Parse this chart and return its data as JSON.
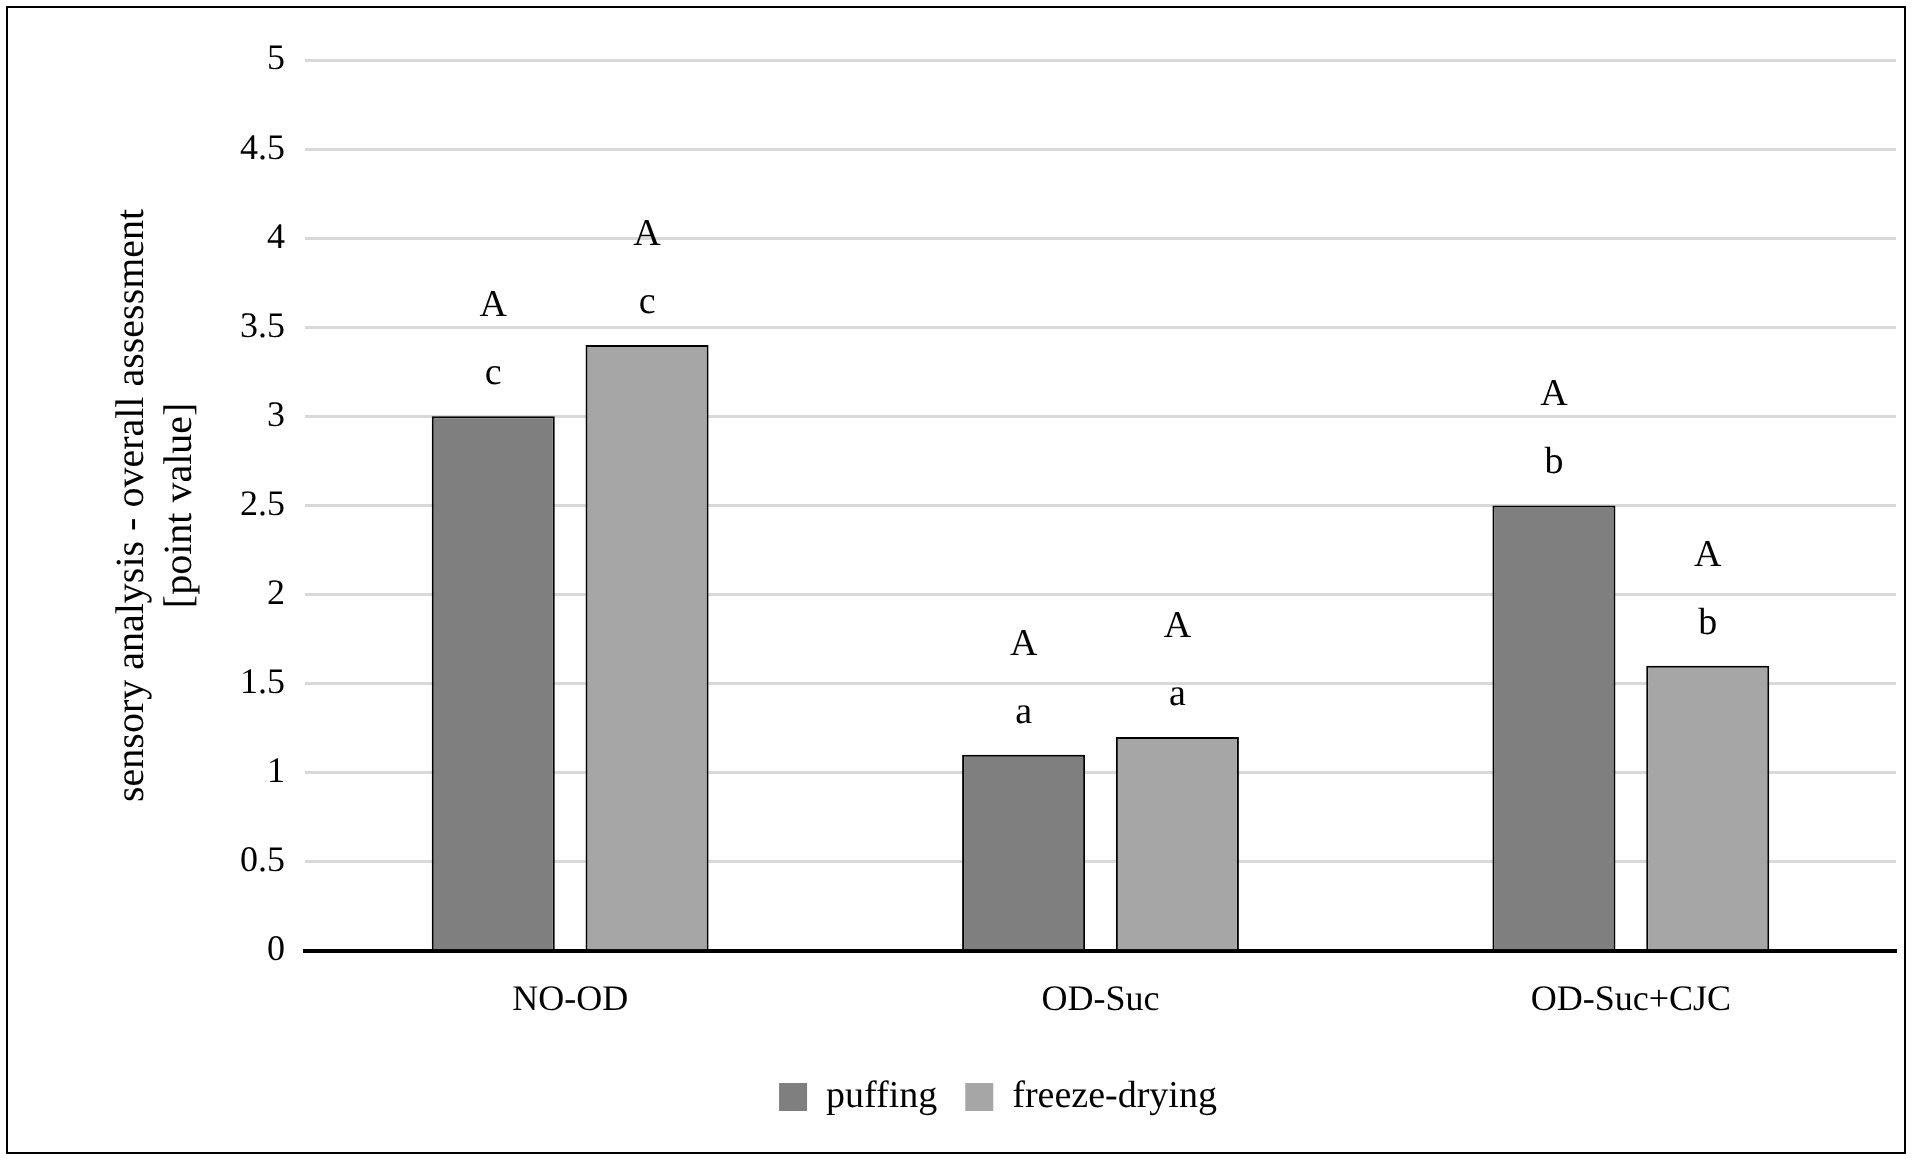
{
  "chart_data": {
    "type": "bar",
    "ylabel": "sensory analysis - overall assessment\n[point value]",
    "categories": [
      "NO-OD",
      "OD-Suc",
      "OD-Suc+CJC"
    ],
    "series": [
      {
        "name": "puffing",
        "color": "#7f7f7f",
        "values": [
          3,
          1.1,
          2.5
        ],
        "value_labels": [
          "A\nc",
          "A\na",
          "A\nb"
        ]
      },
      {
        "name": "freeze-drying",
        "color": "#a6a6a6",
        "values": [
          3.4,
          1.2,
          1.6
        ],
        "value_labels": [
          "A\nc",
          "A\na",
          "A\nb"
        ]
      }
    ],
    "ylim": [
      0,
      5
    ],
    "yticks": [
      0,
      0.5,
      1,
      1.5,
      2,
      2.5,
      3,
      3.5,
      4,
      4.5,
      5
    ],
    "grid": "y",
    "legend": "bottom"
  }
}
